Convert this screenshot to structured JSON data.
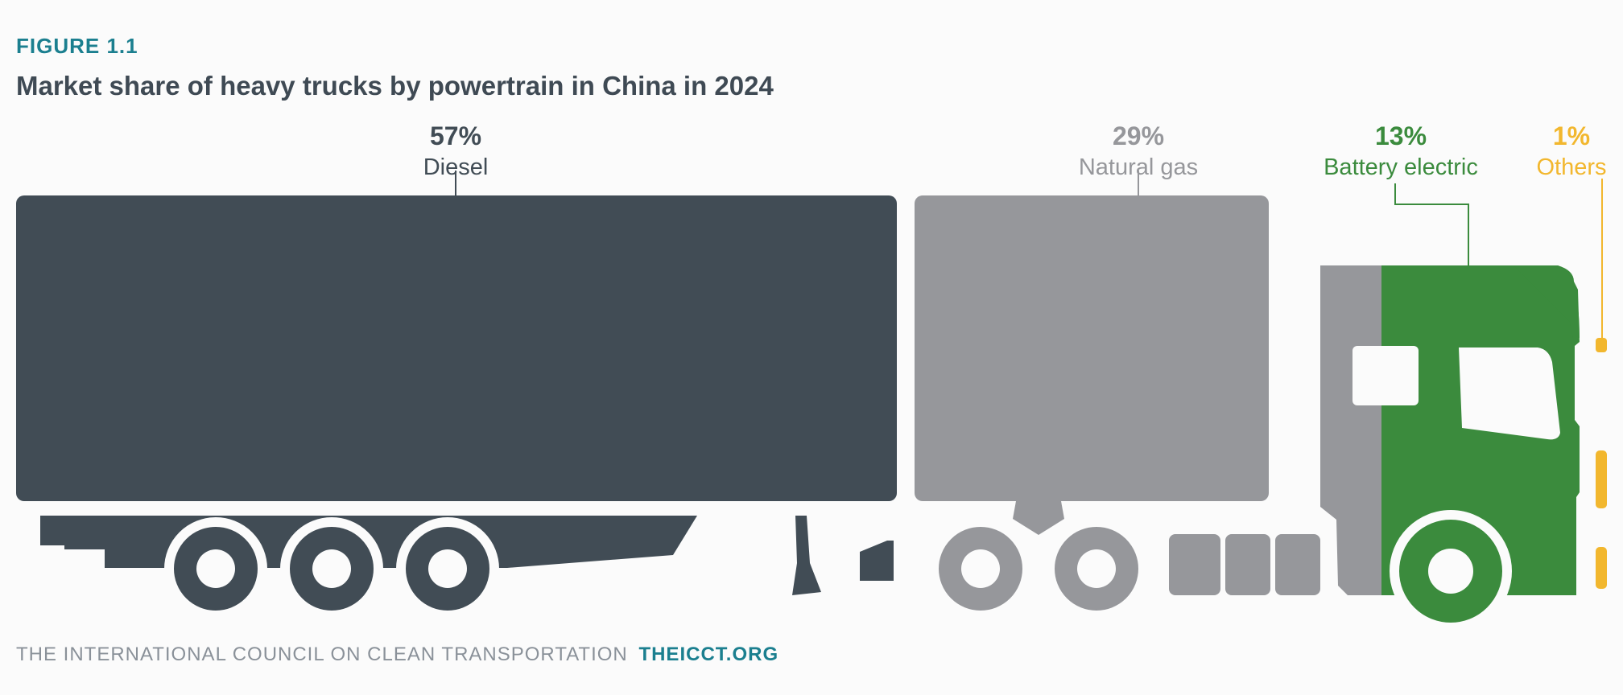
{
  "figure_label": "FIGURE 1.1",
  "footer": {
    "org": "THE INTERNATIONAL COUNCIL ON CLEAN TRANSPORTATION",
    "site": "THEICCT.ORG"
  },
  "chart_data": {
    "type": "pictorial-bar",
    "title": "Market share of heavy trucks by powertrain in China in 2024",
    "unit": "%",
    "categories": [
      "Diesel",
      "Natural gas",
      "Battery electric",
      "Others"
    ],
    "values": [
      57,
      29,
      13,
      1
    ],
    "value_labels": [
      "57%",
      "29%",
      "13%",
      "1%"
    ],
    "colors": [
      "#414c55",
      "#96979b",
      "#3b8b3d",
      "#f2b72e"
    ]
  }
}
